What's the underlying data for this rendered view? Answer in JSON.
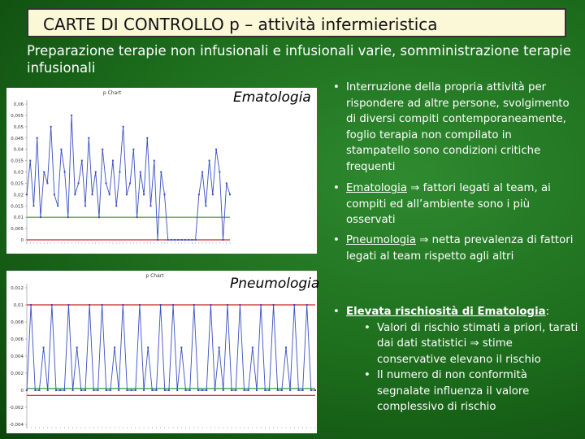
{
  "title": "CARTE DI CONTROLLO p – attività infermieristica",
  "subtitle": "Preparazione terapie non infusionali e infusionali varie, somministrazione terapie infusionali",
  "charts": [
    {
      "type": "line",
      "label": "Ematologia",
      "chart_title": "p Chart",
      "color": "#3a4fc0",
      "ylim": [
        0,
        0.06
      ],
      "yticks": [
        {
          "value": 0.06,
          "label": "0,06"
        },
        {
          "value": 0.055,
          "label": "0,055"
        },
        {
          "value": 0.05,
          "label": "0,05"
        },
        {
          "value": 0.045,
          "label": "0,045"
        },
        {
          "value": 0.04,
          "label": "0,04"
        },
        {
          "value": 0.035,
          "label": "0,035"
        },
        {
          "value": 0.03,
          "label": "0,03"
        },
        {
          "value": 0.025,
          "label": "0,025"
        },
        {
          "value": 0.02,
          "label": "0,02"
        },
        {
          "value": 0.015,
          "label": "0,015"
        },
        {
          "value": 0.01,
          "label": "0,01"
        },
        {
          "value": 0.005,
          "label": "0,005"
        },
        0
      ],
      "control_lines": [
        {
          "value": 0.01,
          "color": "#2e9e2e"
        },
        {
          "value": 0,
          "color": "#d22222"
        }
      ],
      "values": [
        0.02,
        0.035,
        0.015,
        0.045,
        0.01,
        0.03,
        0.025,
        0.05,
        0.02,
        0.015,
        0.04,
        0.03,
        0.01,
        0.055,
        0.02,
        0.025,
        0.035,
        0.015,
        0.045,
        0.02,
        0.03,
        0.01,
        0.04,
        0.025,
        0.02,
        0.035,
        0.015,
        0.03,
        0.05,
        0.02,
        0.025,
        0.04,
        0.01,
        0.03,
        0.02,
        0.045,
        0.015,
        0.035,
        0,
        0.03,
        0.02,
        0,
        0,
        0,
        0,
        0,
        0,
        0,
        0,
        0,
        0.02,
        0.03,
        0.015,
        0.035,
        0.02,
        0.04,
        0.03,
        0,
        0.025,
        0.02
      ]
    },
    {
      "type": "line",
      "label": "Pneumologia",
      "chart_title": "p Chart",
      "color": "#3a4fc0",
      "ylim": [
        -0.004,
        0.012
      ],
      "yticks": [
        {
          "value": 0.012,
          "label": "0,012"
        },
        {
          "value": 0.01,
          "label": "0,01"
        },
        {
          "value": 0.008,
          "label": "0,008"
        },
        {
          "value": 0.006,
          "label": "0,006"
        },
        {
          "value": 0.004,
          "label": "0,004"
        },
        {
          "value": 0.002,
          "label": "0,002"
        },
        0,
        {
          "value": -0.002,
          "label": "-0,002"
        },
        {
          "value": -0.004,
          "label": "-0,004"
        }
      ],
      "control_lines": [
        {
          "value": 0.01,
          "color": "#d22222"
        },
        {
          "value": 0.0002,
          "color": "#2e9e2e"
        },
        {
          "value": -0.0006,
          "color": "#d22222"
        }
      ],
      "values": [
        0,
        0.01,
        0,
        0,
        0.005,
        0,
        0.01,
        0,
        0,
        0,
        0.01,
        0,
        0.005,
        0,
        0,
        0.01,
        0,
        0,
        0.01,
        0,
        0,
        0.005,
        0,
        0.01,
        0,
        0,
        0,
        0.01,
        0,
        0.005,
        0,
        0,
        0.01,
        0,
        0,
        0.01,
        0,
        0.005,
        0,
        0,
        0.01,
        0,
        0,
        0,
        0.01,
        0,
        0.005,
        0,
        0.01,
        0,
        0,
        0.01,
        0,
        0,
        0.005,
        0,
        0.01,
        0,
        0,
        0.01,
        0,
        0,
        0.005,
        0,
        0.01,
        0,
        0,
        0.01,
        0,
        0
      ]
    }
  ],
  "bullets": [
    {
      "text": "Interruzione della propria attività per rispondere ad altre persone, svolgimento di diversi compiti contemporaneamente, foglio terapia non compilato in stampatello  sono condizioni critiche frequenti"
    },
    {
      "term": "Ematologia",
      "text": "⇒ fattori legati al team, ai compiti ed all’ambiente sono i più osservati"
    },
    {
      "term": "Pneumologia",
      "text": "⇒ netta prevalenza di fattori legati al team rispetto agli altri"
    },
    {
      "term": "Elevata rischiosità di Ematologia",
      "text": ":",
      "sub": [
        "Valori di rischio stimati a priori, tarati dai dati statistici ⇒ stime conservative elevano il rischio",
        "Il numero di non conformità segnalate influenza il valore complessivo di rischio"
      ]
    }
  ]
}
